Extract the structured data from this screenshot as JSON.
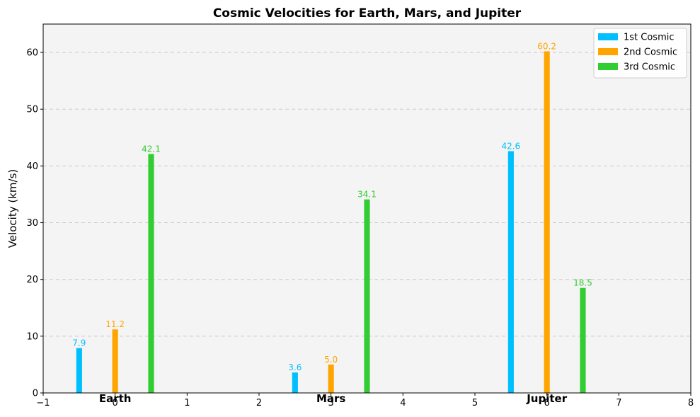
{
  "chart_data": {
    "type": "bar",
    "title": "Cosmic Velocities for Earth, Mars, and Jupiter",
    "xlabel": "",
    "ylabel": "Velocity (km/s)",
    "xlim": [
      -1,
      8
    ],
    "ylim": [
      0,
      65
    ],
    "x_ticks": [
      -1,
      0,
      1,
      2,
      3,
      4,
      5,
      6,
      7,
      8
    ],
    "y_ticks": [
      0,
      10,
      20,
      30,
      40,
      50,
      60
    ],
    "grid": "y-dashed",
    "legend": "top-right",
    "categories": [
      "Earth",
      "Mars",
      "Jupiter"
    ],
    "category_positions": [
      0,
      3,
      6
    ],
    "group_offsets": [
      -0.5,
      0,
      0.5
    ],
    "series": [
      {
        "name": "1st Cosmic",
        "color": "#00bfff",
        "values": [
          7.9,
          3.6,
          42.6
        ],
        "labels": [
          "7.9",
          "3.6",
          "42.6"
        ]
      },
      {
        "name": "2nd Cosmic",
        "color": "#ffa500",
        "values": [
          11.2,
          5.0,
          60.2
        ],
        "labels": [
          "11.2",
          "5.0",
          "60.2"
        ]
      },
      {
        "name": "3rd Cosmic",
        "color": "#32cd32",
        "values": [
          42.1,
          34.1,
          18.5
        ],
        "labels": [
          "42.1",
          "34.1",
          "18.5"
        ]
      }
    ]
  }
}
